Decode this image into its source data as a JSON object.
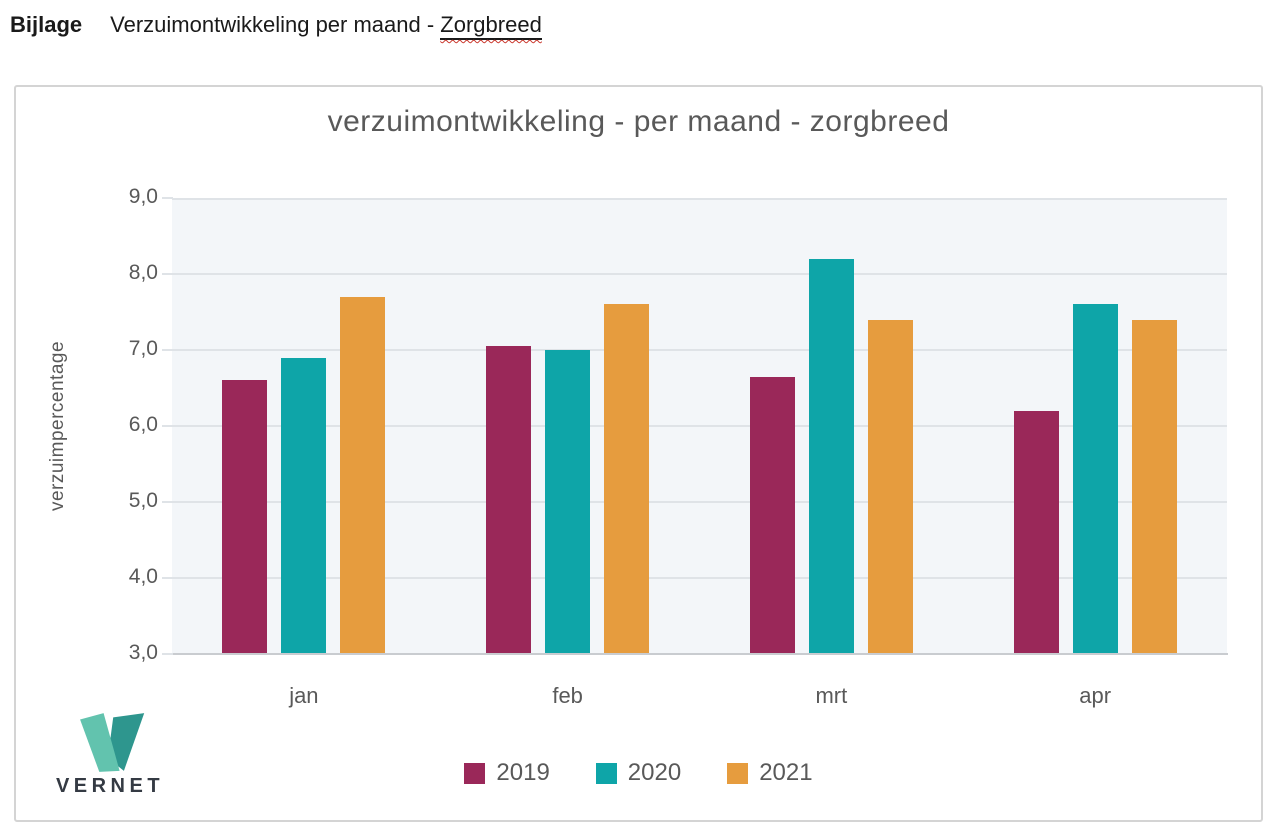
{
  "page": {
    "header": {
      "label": "Bijlage",
      "title_main": "Verzuimontwikkeling per maand - ",
      "title_underlined": "Zorgbreed"
    }
  },
  "chart_data": {
    "type": "bar",
    "title": "verzuimontwikkeling - per maand - zorgbreed",
    "categories": [
      "jan",
      "feb",
      "mrt",
      "apr"
    ],
    "series": [
      {
        "name": "2019",
        "color": "#9A2859",
        "values": [
          6.6,
          7.05,
          6.65,
          6.2
        ]
      },
      {
        "name": "2020",
        "color": "#0EA5A8",
        "values": [
          6.9,
          7.0,
          8.2,
          7.6
        ]
      },
      {
        "name": "2021",
        "color": "#E69C3E",
        "values": [
          7.7,
          7.6,
          7.4,
          7.4
        ]
      }
    ],
    "xlabel": "",
    "ylabel": "verzuimpercentage",
    "ylim": [
      3.0,
      9.0
    ],
    "ytick_step": 1.0,
    "ytick_labels": [
      "9,0",
      "8,0",
      "7,0",
      "6,0",
      "5,0",
      "4,0",
      "3,0"
    ],
    "grid": true,
    "legend_position": "bottom",
    "plot_bg": "#F3F6F9",
    "gridline_color": "#DFE3E7",
    "text_color": "#595959"
  },
  "logo": {
    "text": "VERNET",
    "color_light": "#62C3AE",
    "color_dark": "#2E968E"
  }
}
